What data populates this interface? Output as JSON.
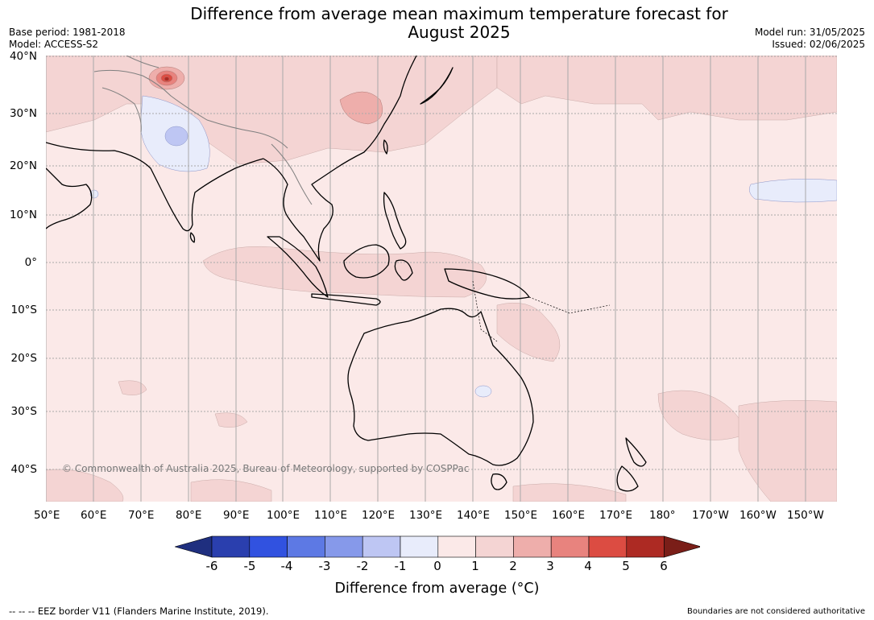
{
  "title_line1": "Difference from average mean maximum temperature forecast for",
  "title_line2": "August 2025",
  "base_period": "Base period: 1981-2018",
  "model": "Model: ACCESS-S2",
  "model_run": "Model run: 31/05/2025",
  "issued": "Issued: 02/06/2025",
  "copyright": "© Commonwealth of Australia 2025, Bureau of Meteorology, supported by COSPPac",
  "lat_labels": [
    "40°N",
    "30°N",
    "20°N",
    "10°N",
    "0°",
    "10°S",
    "20°S",
    "30°S",
    "40°S"
  ],
  "lon_labels": [
    "50°E",
    "60°E",
    "70°E",
    "80°E",
    "90°E",
    "100°E",
    "110°E",
    "120°E",
    "130°E",
    "140°E",
    "150°E",
    "160°E",
    "170°E",
    "180°",
    "170°W",
    "160°W",
    "150°W"
  ],
  "colorbar": {
    "ticks": [
      "-6",
      "-5",
      "-4",
      "-3",
      "-2",
      "-1",
      "0",
      "1",
      "2",
      "3",
      "4",
      "5",
      "6"
    ],
    "colors": [
      "#2a3fae",
      "#3152e0",
      "#5d79e4",
      "#8699ea",
      "#bec6f3",
      "#e8ecfb",
      "#fbe9e8",
      "#f4d4d3",
      "#eeaeab",
      "#e8837e",
      "#dc4c42",
      "#ad2a23"
    ],
    "under_color": "#1f2f7f",
    "over_color": "#7a1e18",
    "label": "Difference from average (°C)"
  },
  "footer_left": "--  --  -- EEZ border V11 (Flanders Marine Institute, 2019).",
  "footer_right": "Boundaries are not considered authoritative"
}
